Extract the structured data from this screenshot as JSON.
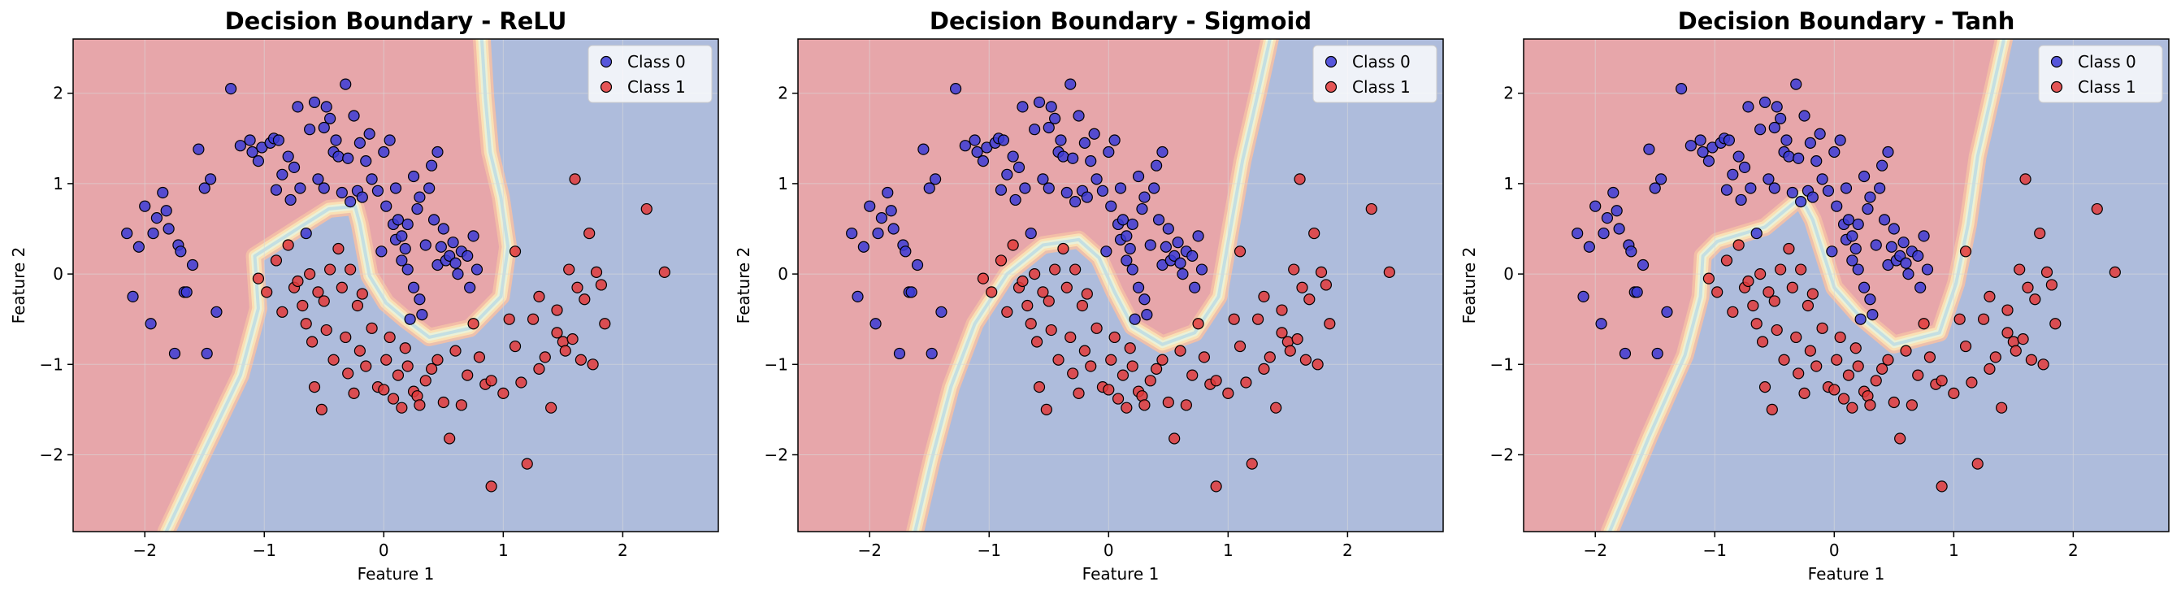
{
  "figure": {
    "background": "#ffffff"
  },
  "colors": {
    "region_class0": "#aebcdc",
    "region_class1": "#e7a6aa",
    "boundary_band": [
      "#f4c0a6",
      "#fbe3b6",
      "#e9f3da",
      "#c0dde3"
    ],
    "point_class0": "#3b3bd6",
    "point_class1": "#e23a3a",
    "point_edge": "#000000",
    "grid": "#d9d9d9"
  },
  "chart_data": [
    {
      "type": "scatter",
      "title": "Decision Boundary - ReLU",
      "xlabel": "Feature 1",
      "ylabel": "Feature 2",
      "xlim": [
        -2.6,
        2.8
      ],
      "ylim": [
        -2.85,
        2.6
      ],
      "xticks": [
        -2,
        -1,
        0,
        1,
        2
      ],
      "yticks": [
        -2,
        -1,
        0,
        1,
        2
      ],
      "xtick_labels": [
        "−2",
        "−1",
        "0",
        "1",
        "2"
      ],
      "ytick_labels": [
        "−2",
        "−1",
        "0",
        "1",
        "2"
      ],
      "grid": true,
      "legend": {
        "position": "top-right",
        "entries": [
          "Class 0",
          "Class 1"
        ]
      },
      "boundary": [
        [
          0.82,
          2.6
        ],
        [
          0.85,
          1.95
        ],
        [
          0.89,
          1.35
        ],
        [
          0.98,
          0.85
        ],
        [
          1.04,
          0.3
        ],
        [
          0.98,
          -0.25
        ],
        [
          0.72,
          -0.6
        ],
        [
          0.38,
          -0.7
        ],
        [
          0.18,
          -0.5
        ],
        [
          0.02,
          -0.32
        ],
        [
          -0.12,
          -0.02
        ],
        [
          -0.2,
          0.55
        ],
        [
          -0.24,
          0.75
        ],
        [
          -0.46,
          0.72
        ],
        [
          -0.7,
          0.52
        ],
        [
          -1.08,
          0.2
        ],
        [
          -1.05,
          -0.38
        ],
        [
          -1.2,
          -1.12
        ],
        [
          -1.5,
          -1.95
        ],
        [
          -1.82,
          -2.85
        ]
      ]
    },
    {
      "type": "scatter",
      "title": "Decision Boundary - Sigmoid",
      "xlabel": "Feature 1",
      "ylabel": "Feature 2",
      "xlim": [
        -2.6,
        2.8
      ],
      "ylim": [
        -2.85,
        2.6
      ],
      "xticks": [
        -2,
        -1,
        0,
        1,
        2
      ],
      "yticks": [
        -2,
        -1,
        0,
        1,
        2
      ],
      "xtick_labels": [
        "−2",
        "−1",
        "0",
        "1",
        "2"
      ],
      "ytick_labels": [
        "−2",
        "−1",
        "0",
        "1",
        "2"
      ],
      "grid": true,
      "legend": {
        "position": "top-right",
        "entries": [
          "Class 0",
          "Class 1"
        ]
      },
      "boundary": [
        [
          1.35,
          2.6
        ],
        [
          1.25,
          2.0
        ],
        [
          1.12,
          1.25
        ],
        [
          1.0,
          0.35
        ],
        [
          0.92,
          -0.25
        ],
        [
          0.72,
          -0.65
        ],
        [
          0.45,
          -0.78
        ],
        [
          0.2,
          -0.58
        ],
        [
          0.05,
          -0.2
        ],
        [
          -0.08,
          0.18
        ],
        [
          -0.25,
          0.38
        ],
        [
          -0.55,
          0.32
        ],
        [
          -0.85,
          0.0
        ],
        [
          -1.12,
          -0.55
        ],
        [
          -1.32,
          -1.25
        ],
        [
          -1.48,
          -2.05
        ],
        [
          -1.62,
          -2.85
        ]
      ]
    },
    {
      "type": "scatter",
      "title": "Decision Boundary - Tanh",
      "xlabel": "Feature 1",
      "ylabel": "Feature 2",
      "xlim": [
        -2.6,
        2.8
      ],
      "ylim": [
        -2.85,
        2.6
      ],
      "xticks": [
        -2,
        -1,
        0,
        1,
        2
      ],
      "yticks": [
        -2,
        -1,
        0,
        1,
        2
      ],
      "xtick_labels": [
        "−2",
        "−1",
        "0",
        "1",
        "2"
      ],
      "ytick_labels": [
        "−2",
        "−1",
        "0",
        "1",
        "2"
      ],
      "grid": true,
      "legend": {
        "position": "top-right",
        "entries": [
          "Class 0",
          "Class 1"
        ]
      },
      "boundary": [
        [
          1.42,
          2.6
        ],
        [
          1.32,
          2.0
        ],
        [
          1.2,
          1.3
        ],
        [
          1.12,
          0.55
        ],
        [
          1.02,
          -0.1
        ],
        [
          0.88,
          -0.65
        ],
        [
          0.5,
          -0.78
        ],
        [
          0.2,
          -0.45
        ],
        [
          0.0,
          -0.15
        ],
        [
          -0.18,
          0.6
        ],
        [
          -0.28,
          0.85
        ],
        [
          -0.58,
          0.52
        ],
        [
          -0.98,
          0.36
        ],
        [
          -1.1,
          0.2
        ],
        [
          -1.12,
          -0.25
        ],
        [
          -1.25,
          -0.9
        ],
        [
          -1.55,
          -1.8
        ],
        [
          -1.88,
          -2.85
        ]
      ]
    }
  ],
  "points": {
    "class0": [
      [
        -2.15,
        0.45
      ],
      [
        -2.1,
        -0.25
      ],
      [
        -2.05,
        0.3
      ],
      [
        -2.0,
        0.75
      ],
      [
        -1.95,
        -0.55
      ],
      [
        -1.93,
        0.45
      ],
      [
        -1.9,
        0.62
      ],
      [
        -1.85,
        0.9
      ],
      [
        -1.82,
        0.7
      ],
      [
        -1.8,
        0.5
      ],
      [
        -1.75,
        -0.88
      ],
      [
        -1.72,
        0.32
      ],
      [
        -1.7,
        0.25
      ],
      [
        -1.67,
        -0.2
      ],
      [
        -1.65,
        -0.2
      ],
      [
        -1.6,
        0.1
      ],
      [
        -1.55,
        1.38
      ],
      [
        -1.5,
        0.95
      ],
      [
        -1.48,
        -0.88
      ],
      [
        -1.45,
        1.05
      ],
      [
        -1.4,
        -0.42
      ],
      [
        -1.28,
        2.05
      ],
      [
        -1.2,
        1.42
      ],
      [
        -1.12,
        1.48
      ],
      [
        -1.1,
        1.35
      ],
      [
        -1.05,
        1.25
      ],
      [
        -1.02,
        1.4
      ],
      [
        -0.95,
        1.45
      ],
      [
        -0.92,
        1.5
      ],
      [
        -0.9,
        0.93
      ],
      [
        -0.88,
        1.48
      ],
      [
        -0.85,
        1.1
      ],
      [
        -0.8,
        1.3
      ],
      [
        -0.78,
        0.82
      ],
      [
        -0.75,
        1.18
      ],
      [
        -0.72,
        1.85
      ],
      [
        -0.7,
        0.95
      ],
      [
        -0.65,
        0.45
      ],
      [
        -0.62,
        1.6
      ],
      [
        -0.58,
        1.9
      ],
      [
        -0.55,
        1.05
      ],
      [
        -0.5,
        0.95
      ],
      [
        -0.5,
        1.62
      ],
      [
        -0.48,
        1.85
      ],
      [
        -0.45,
        1.72
      ],
      [
        -0.42,
        1.35
      ],
      [
        -0.4,
        1.48
      ],
      [
        -0.38,
        1.3
      ],
      [
        -0.35,
        0.9
      ],
      [
        -0.32,
        2.1
      ],
      [
        -0.3,
        1.28
      ],
      [
        -0.28,
        0.8
      ],
      [
        -0.25,
        1.75
      ],
      [
        -0.22,
        0.92
      ],
      [
        -0.2,
        1.45
      ],
      [
        -0.18,
        0.85
      ],
      [
        -0.15,
        1.25
      ],
      [
        -0.12,
        1.55
      ],
      [
        -0.1,
        1.05
      ],
      [
        -0.05,
        0.92
      ],
      [
        -0.02,
        0.25
      ],
      [
        0.0,
        1.35
      ],
      [
        0.02,
        0.75
      ],
      [
        0.05,
        1.48
      ],
      [
        0.08,
        0.55
      ],
      [
        0.1,
        0.95
      ],
      [
        0.1,
        0.38
      ],
      [
        0.12,
        0.6
      ],
      [
        0.15,
        0.42
      ],
      [
        0.15,
        0.15
      ],
      [
        0.18,
        0.28
      ],
      [
        0.2,
        0.05
      ],
      [
        0.2,
        0.55
      ],
      [
        0.22,
        -0.5
      ],
      [
        0.25,
        1.08
      ],
      [
        0.25,
        -0.15
      ],
      [
        0.28,
        0.72
      ],
      [
        0.3,
        0.85
      ],
      [
        0.3,
        -0.28
      ],
      [
        0.32,
        -0.45
      ],
      [
        0.35,
        0.32
      ],
      [
        0.38,
        0.95
      ],
      [
        0.4,
        1.2
      ],
      [
        0.42,
        0.6
      ],
      [
        0.45,
        0.1
      ],
      [
        0.45,
        1.35
      ],
      [
        0.48,
        0.3
      ],
      [
        0.5,
        0.5
      ],
      [
        0.52,
        0.15
      ],
      [
        0.55,
        0.2
      ],
      [
        0.58,
        0.35
      ],
      [
        0.6,
        0.12
      ],
      [
        0.62,
        0.0
      ],
      [
        0.65,
        0.25
      ],
      [
        0.7,
        0.2
      ],
      [
        0.72,
        -0.15
      ],
      [
        0.75,
        0.42
      ],
      [
        0.78,
        0.05
      ]
    ],
    "class1": [
      [
        -1.05,
        -0.05
      ],
      [
        -0.98,
        -0.2
      ],
      [
        -0.9,
        0.15
      ],
      [
        -0.85,
        -0.42
      ],
      [
        -0.8,
        0.32
      ],
      [
        -0.75,
        -0.15
      ],
      [
        -0.72,
        -0.08
      ],
      [
        -0.68,
        -0.35
      ],
      [
        -0.65,
        -0.55
      ],
      [
        -0.62,
        0.0
      ],
      [
        -0.6,
        -0.75
      ],
      [
        -0.58,
        -1.25
      ],
      [
        -0.55,
        -0.2
      ],
      [
        -0.52,
        -1.5
      ],
      [
        -0.5,
        -0.3
      ],
      [
        -0.48,
        -0.62
      ],
      [
        -0.45,
        0.05
      ],
      [
        -0.42,
        -0.95
      ],
      [
        -0.38,
        0.28
      ],
      [
        -0.35,
        -0.15
      ],
      [
        -0.32,
        -0.7
      ],
      [
        -0.3,
        -1.1
      ],
      [
        -0.28,
        0.05
      ],
      [
        -0.25,
        -1.32
      ],
      [
        -0.22,
        -0.35
      ],
      [
        -0.2,
        -0.85
      ],
      [
        -0.18,
        -0.22
      ],
      [
        -0.15,
        -1.02
      ],
      [
        -0.1,
        -0.6
      ],
      [
        -0.05,
        -1.25
      ],
      [
        0.0,
        -1.28
      ],
      [
        0.02,
        -0.95
      ],
      [
        0.05,
        -0.7
      ],
      [
        0.08,
        -1.38
      ],
      [
        0.12,
        -1.12
      ],
      [
        0.15,
        -1.48
      ],
      [
        0.18,
        -0.82
      ],
      [
        0.2,
        -1.02
      ],
      [
        0.25,
        -1.3
      ],
      [
        0.28,
        -1.35
      ],
      [
        0.3,
        -1.45
      ],
      [
        0.35,
        -1.18
      ],
      [
        0.4,
        -1.05
      ],
      [
        0.45,
        -0.95
      ],
      [
        0.5,
        -1.42
      ],
      [
        0.55,
        -1.82
      ],
      [
        0.6,
        -0.85
      ],
      [
        0.65,
        -1.45
      ],
      [
        0.7,
        -1.12
      ],
      [
        0.75,
        -0.55
      ],
      [
        0.8,
        -0.92
      ],
      [
        0.85,
        -1.22
      ],
      [
        0.9,
        -1.18
      ],
      [
        0.9,
        -2.35
      ],
      [
        1.0,
        -1.32
      ],
      [
        1.05,
        -0.5
      ],
      [
        1.1,
        -0.8
      ],
      [
        1.15,
        -1.2
      ],
      [
        1.2,
        -2.1
      ],
      [
        1.25,
        -0.5
      ],
      [
        1.3,
        -1.05
      ],
      [
        1.35,
        -0.92
      ],
      [
        1.4,
        -1.48
      ],
      [
        1.45,
        -0.65
      ],
      [
        1.5,
        -0.75
      ],
      [
        1.52,
        -0.85
      ],
      [
        1.55,
        0.05
      ],
      [
        1.58,
        -0.72
      ],
      [
        1.6,
        1.05
      ],
      [
        1.62,
        -0.15
      ],
      [
        1.65,
        -0.95
      ],
      [
        1.68,
        -0.28
      ],
      [
        1.72,
        0.45
      ],
      [
        1.75,
        -1.0
      ],
      [
        1.78,
        0.02
      ],
      [
        1.82,
        -0.12
      ],
      [
        1.85,
        -0.55
      ],
      [
        2.2,
        0.72
      ],
      [
        2.35,
        0.02
      ],
      [
        1.1,
        0.25
      ],
      [
        1.3,
        -0.25
      ],
      [
        1.45,
        -0.4
      ]
    ]
  }
}
